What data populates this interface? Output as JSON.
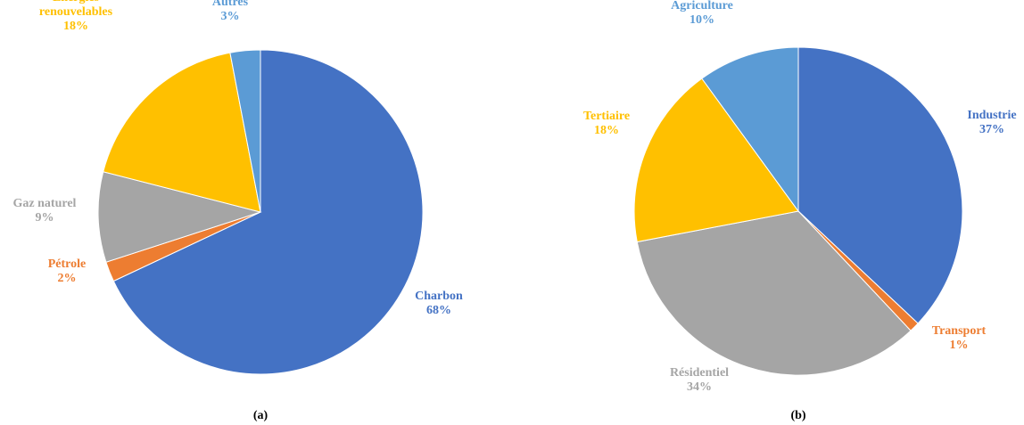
{
  "chart_data": [
    {
      "type": "pie",
      "caption": "(a)",
      "slices": [
        {
          "name": "Charbon",
          "value": 68,
          "label": "68%",
          "color": "#4472C4"
        },
        {
          "name": "Pétrole",
          "value": 2,
          "label": "2%",
          "color": "#ED7D31"
        },
        {
          "name": "Gaz naturel",
          "value": 9,
          "label": "9%",
          "color": "#A5A5A5"
        },
        {
          "name": "Énergies renouvelables",
          "value": 18,
          "label": "18%",
          "color": "#FFC000"
        },
        {
          "name": "Autres",
          "value": 3,
          "label": "3%",
          "color": "#5B9BD5"
        }
      ]
    },
    {
      "type": "pie",
      "caption": "(b)",
      "slices": [
        {
          "name": "Industrie",
          "value": 37,
          "label": "37%",
          "color": "#4472C4"
        },
        {
          "name": "Transport",
          "value": 1,
          "label": "1%",
          "color": "#ED7D31"
        },
        {
          "name": "Résidentiel",
          "value": 34,
          "label": "34%",
          "color": "#A5A5A5"
        },
        {
          "name": "Tertiaire",
          "value": 18,
          "label": "18%",
          "color": "#FFC000"
        },
        {
          "name": "Agriculture",
          "value": 10,
          "label": "10%",
          "color": "#5B9BD5"
        }
      ]
    }
  ]
}
